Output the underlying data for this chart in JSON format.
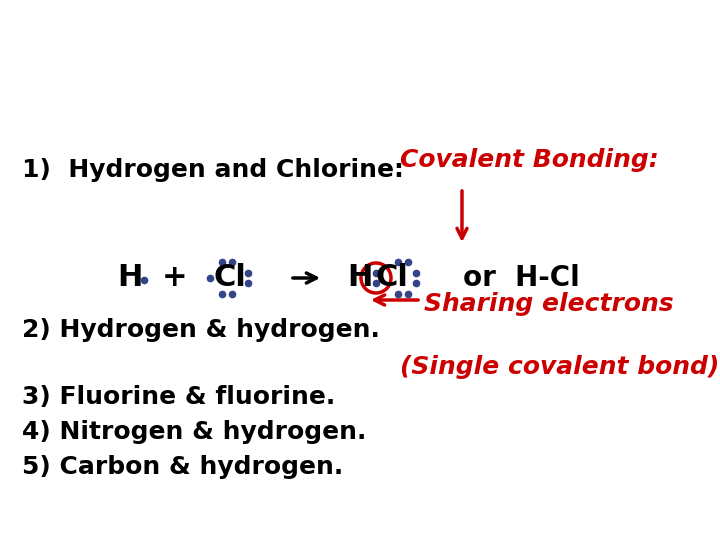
{
  "bg_color": "#ffffff",
  "black": "#000000",
  "red": "#cc0000",
  "dot_color": "#334488",
  "line1": "1)  Hydrogen and Chlorine:",
  "covalent_bonding": "Covalent Bonding:",
  "line2": "2) Hydrogen & hydrogen.",
  "sharing_electrons": "Sharing electrons",
  "single_covalent": "(Single covalent bond)",
  "line3": "3) Fluorine & fluorine.",
  "line4": "4) Nitrogen & hydrogen.",
  "line5": "5) Carbon & hydrogen.",
  "or_hcl": "or  H-Cl",
  "H_label": "H",
  "plus_label": "+",
  "Cl_label": "Cl",
  "H2_label": "H",
  "Cl2_label": "Cl",
  "fs_main": 18,
  "fs_chem": 20,
  "fs_red": 18,
  "fig_w": 7.2,
  "fig_h": 5.4,
  "dpi": 100
}
